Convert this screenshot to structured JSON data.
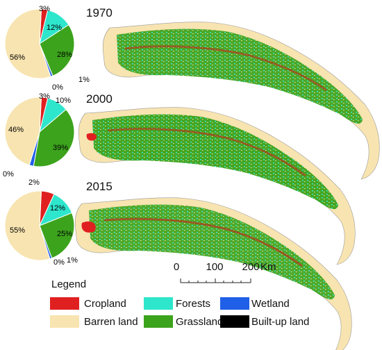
{
  "panels": [
    {
      "year": "1970",
      "slices": [
        {
          "class": "Cropland",
          "value": 3,
          "label": "3%"
        },
        {
          "class": "Forests",
          "value": 12,
          "label": "12%"
        },
        {
          "class": "Grassland",
          "value": 28,
          "label": "28%"
        },
        {
          "class": "Wetland",
          "value": 1,
          "label": "1%"
        },
        {
          "class": "Built-up land",
          "value": 0,
          "label": "0%"
        },
        {
          "class": "Barren land",
          "value": 56,
          "label": "56%"
        }
      ]
    },
    {
      "year": "2000",
      "slices": [
        {
          "class": "Cropland",
          "value": 3,
          "label": "3%"
        },
        {
          "class": "Forests",
          "value": 10,
          "label": "10%"
        },
        {
          "class": "Grassland",
          "value": 39,
          "label": "39%"
        },
        {
          "class": "Wetland",
          "value": 2,
          "label": "2%"
        },
        {
          "class": "Built-up land",
          "value": 0,
          "label": "0%"
        },
        {
          "class": "Barren land",
          "value": 46,
          "label": "46%"
        }
      ]
    },
    {
      "year": "2015",
      "slices": [
        {
          "class": "Cropland",
          "value": 6,
          "label": ""
        },
        {
          "class": "Forests",
          "value": 12,
          "label": "12%"
        },
        {
          "class": "Grassland",
          "value": 25,
          "label": "25%"
        },
        {
          "class": "Wetland",
          "value": 1,
          "label": "1%"
        },
        {
          "class": "Built-up land",
          "value": 0,
          "label": "0%"
        },
        {
          "class": "Barren land",
          "value": 55,
          "label": "55%"
        }
      ]
    }
  ],
  "legend": {
    "title": "Legend",
    "items": [
      {
        "label": "Cropland",
        "color": "#e02020"
      },
      {
        "label": "Forests",
        "color": "#2ee6cc"
      },
      {
        "label": "Wetland",
        "color": "#2060e8"
      },
      {
        "label": "Barren land",
        "color": "#f8e4b0"
      },
      {
        "label": "Grassland",
        "color": "#3ca31c"
      },
      {
        "label": "Built-up land",
        "color": "#000000"
      }
    ]
  },
  "scale_bar": {
    "ticks": [
      "0",
      "100",
      "200"
    ],
    "unit": "Km"
  }
}
